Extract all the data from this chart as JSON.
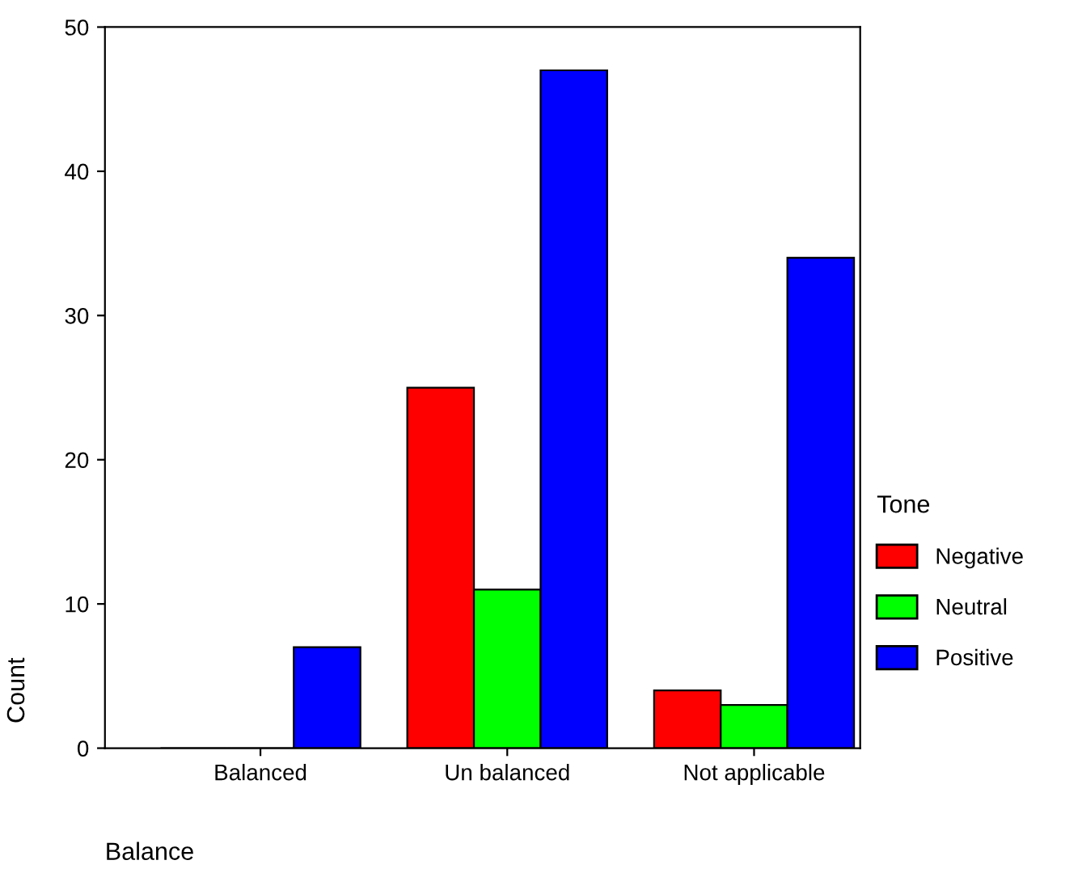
{
  "chart_data": {
    "type": "bar",
    "categories": [
      "Balanced",
      "Un balanced",
      "Not applicable"
    ],
    "series": [
      {
        "name": "Negative",
        "color": "#ff0000",
        "values": [
          0,
          25,
          4
        ]
      },
      {
        "name": "Neutral",
        "color": "#00ff00",
        "values": [
          0,
          11,
          3
        ]
      },
      {
        "name": "Positive",
        "color": "#0000ff",
        "values": [
          7,
          47,
          34
        ]
      }
    ],
    "xlabel": "Balance",
    "ylabel": "Count",
    "legend_title": "Tone",
    "legend": "right",
    "ylim": [
      0,
      50
    ],
    "yticks": [
      0,
      10,
      20,
      30,
      40,
      50
    ],
    "grid": false
  }
}
